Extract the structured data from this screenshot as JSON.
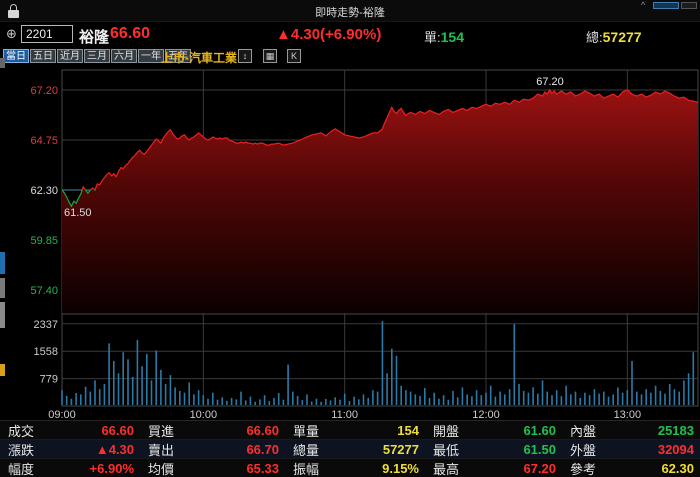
{
  "colors": {
    "up": "#ff2d2d",
    "down": "#22c04e",
    "total_yellow": "#f0de3a",
    "reference_line": "#4d86a8",
    "volume_bar": "#2a7aa8",
    "active_tab": "#1d5c9e",
    "market_label": "#e6b41e",
    "area_fill_top": "#9a1212"
  },
  "titlebar": {
    "title": "即時走勢-裕隆"
  },
  "quote": {
    "stock_id": "2201",
    "stock_name": "裕隆",
    "price": "66.60",
    "change": "▲4.30(+6.90%)",
    "lot_label": "單:",
    "lot": "154",
    "total_label": "總:",
    "total": "57277"
  },
  "toolbar": {
    "tabs": [
      {
        "label": "當日",
        "active": true
      },
      {
        "label": "五日",
        "active": false
      },
      {
        "label": "近月",
        "active": false
      },
      {
        "label": "三月",
        "active": false
      },
      {
        "label": "六月",
        "active": false
      },
      {
        "label": "一年",
        "active": false
      },
      {
        "label": "五年",
        "active": false
      }
    ],
    "market_label": "上市-汽車工業",
    "icon_buttons": [
      {
        "name": "expand-vertical-icon",
        "glyph": "↕"
      },
      {
        "name": "overlay-panel-icon",
        "glyph": "▦"
      },
      {
        "name": "kline-icon",
        "glyph": "K"
      }
    ]
  },
  "chart_data": {
    "type": "area",
    "title": "即時走勢-裕隆",
    "legend": "none",
    "grid": true,
    "price_axis": {
      "ticks": [
        {
          "label": "67.20",
          "value": 67.2,
          "color": "#e23b3b"
        },
        {
          "label": "64.75",
          "value": 64.75,
          "color": "#e23b3b"
        },
        {
          "label": "62.30",
          "value": 62.3,
          "color": "#dcdcdc"
        },
        {
          "label": "59.85",
          "value": 59.85,
          "color": "#28b24c"
        },
        {
          "label": "57.40",
          "value": 57.4,
          "color": "#28b24c"
        }
      ],
      "reference_value": 62.3,
      "high_label": "67.20",
      "low_label": "61.50",
      "ylim": [
        56.2,
        68.2
      ]
    },
    "volume_axis": {
      "ticks": [
        {
          "label": "2337",
          "value": 2337
        },
        {
          "label": "1558",
          "value": 1558
        },
        {
          "label": "779",
          "value": 779
        }
      ],
      "ylim": [
        0,
        3116
      ]
    },
    "x_axis": {
      "ticks": [
        {
          "label": "09:00",
          "minute": 0
        },
        {
          "label": "10:00",
          "minute": 60
        },
        {
          "label": "11:00",
          "minute": 120
        },
        {
          "label": "12:00",
          "minute": 180
        },
        {
          "label": "13:00",
          "minute": 240
        }
      ],
      "range_minutes": [
        0,
        270
      ]
    },
    "price_series": [
      [
        0,
        62.3
      ],
      [
        1,
        62.15
      ],
      [
        2,
        61.95
      ],
      [
        3,
        61.7
      ],
      [
        4,
        61.5
      ],
      [
        5,
        61.75
      ],
      [
        6,
        61.65
      ],
      [
        7,
        61.9
      ],
      [
        8,
        62.1
      ],
      [
        9,
        62.45
      ],
      [
        10,
        62.3
      ],
      [
        11,
        62.15
      ],
      [
        12,
        62.3
      ],
      [
        13,
        62.4
      ],
      [
        14,
        62.3
      ],
      [
        15,
        62.6
      ],
      [
        16,
        62.55
      ],
      [
        17,
        62.75
      ],
      [
        18,
        62.9
      ],
      [
        19,
        63.05
      ],
      [
        20,
        63.15
      ],
      [
        21,
        63.0
      ],
      [
        22,
        63.1
      ],
      [
        23,
        62.95
      ],
      [
        24,
        63.2
      ],
      [
        25,
        63.4
      ],
      [
        26,
        63.35
      ],
      [
        27,
        63.5
      ],
      [
        28,
        63.6
      ],
      [
        29,
        63.75
      ],
      [
        30,
        63.9
      ],
      [
        31,
        64.0
      ],
      [
        32,
        64.15
      ],
      [
        33,
        64.25
      ],
      [
        34,
        64.1
      ],
      [
        35,
        64.05
      ],
      [
        36,
        64.2
      ],
      [
        37,
        64.35
      ],
      [
        38,
        64.5
      ],
      [
        39,
        64.65
      ],
      [
        40,
        64.8
      ],
      [
        41,
        64.7
      ],
      [
        42,
        64.6
      ],
      [
        43,
        64.85
      ],
      [
        44,
        65.0
      ],
      [
        45,
        65.15
      ],
      [
        46,
        65.25
      ],
      [
        47,
        65.05
      ],
      [
        48,
        64.9
      ],
      [
        49,
        64.8
      ],
      [
        50,
        64.85
      ],
      [
        51,
        64.95
      ],
      [
        52,
        65.0
      ],
      [
        53,
        64.85
      ],
      [
        54,
        64.75
      ],
      [
        55,
        64.85
      ],
      [
        56,
        64.9
      ],
      [
        57,
        65.0
      ],
      [
        58,
        65.1
      ],
      [
        59,
        65.0
      ],
      [
        60,
        64.9
      ],
      [
        61,
        64.8
      ],
      [
        62,
        64.75
      ],
      [
        63,
        64.8
      ],
      [
        64,
        64.9
      ],
      [
        65,
        64.85
      ],
      [
        66,
        64.8
      ],
      [
        67,
        64.85
      ],
      [
        68,
        64.8
      ],
      [
        69,
        64.85
      ],
      [
        70,
        64.85
      ],
      [
        71,
        64.75
      ],
      [
        72,
        64.7
      ],
      [
        73,
        64.65
      ],
      [
        74,
        64.6
      ],
      [
        75,
        64.6
      ],
      [
        76,
        64.65
      ],
      [
        77,
        64.6
      ],
      [
        78,
        64.65
      ],
      [
        79,
        64.6
      ],
      [
        80,
        64.6
      ],
      [
        81,
        64.55
      ],
      [
        82,
        64.6
      ],
      [
        83,
        64.55
      ],
      [
        84,
        64.6
      ],
      [
        85,
        64.6
      ],
      [
        86,
        64.55
      ],
      [
        87,
        64.5
      ],
      [
        88,
        64.5
      ],
      [
        89,
        64.55
      ],
      [
        90,
        64.55
      ],
      [
        92,
        64.6
      ],
      [
        94,
        64.5
      ],
      [
        96,
        64.55
      ],
      [
        98,
        64.6
      ],
      [
        100,
        64.7
      ],
      [
        102,
        64.8
      ],
      [
        104,
        64.9
      ],
      [
        106,
        65.0
      ],
      [
        108,
        65.05
      ],
      [
        110,
        65.1
      ],
      [
        112,
        64.95
      ],
      [
        114,
        65.15
      ],
      [
        116,
        65.3
      ],
      [
        118,
        65.15
      ],
      [
        120,
        65.0
      ],
      [
        122,
        64.95
      ],
      [
        124,
        64.9
      ],
      [
        126,
        64.85
      ],
      [
        128,
        64.9
      ],
      [
        130,
        65.0
      ],
      [
        132,
        65.1
      ],
      [
        134,
        65.1
      ],
      [
        136,
        65.3
      ],
      [
        137,
        65.6
      ],
      [
        138,
        65.85
      ],
      [
        139,
        66.1
      ],
      [
        140,
        66.35
      ],
      [
        141,
        66.15
      ],
      [
        142,
        66.05
      ],
      [
        143,
        66.2
      ],
      [
        144,
        66.3
      ],
      [
        145,
        66.1
      ],
      [
        146,
        65.95
      ],
      [
        147,
        66.05
      ],
      [
        148,
        66.1
      ],
      [
        150,
        66.0
      ],
      [
        152,
        66.15
      ],
      [
        154,
        66.05
      ],
      [
        156,
        66.2
      ],
      [
        158,
        66.1
      ],
      [
        160,
        66.0
      ],
      [
        162,
        66.15
      ],
      [
        164,
        66.25
      ],
      [
        166,
        66.1
      ],
      [
        168,
        66.2
      ],
      [
        170,
        66.3
      ],
      [
        172,
        66.2
      ],
      [
        174,
        66.35
      ],
      [
        176,
        66.3
      ],
      [
        178,
        66.4
      ],
      [
        180,
        66.5
      ],
      [
        182,
        66.4
      ],
      [
        184,
        66.55
      ],
      [
        186,
        66.5
      ],
      [
        188,
        66.6
      ],
      [
        190,
        66.5
      ],
      [
        192,
        66.7
      ],
      [
        194,
        66.6
      ],
      [
        196,
        66.75
      ],
      [
        198,
        66.7
      ],
      [
        200,
        66.8
      ],
      [
        202,
        67.0
      ],
      [
        204,
        66.9
      ],
      [
        205,
        67.1
      ],
      [
        206,
        67.0
      ],
      [
        207,
        67.2
      ],
      [
        208,
        67.05
      ],
      [
        209,
        67.15
      ],
      [
        210,
        67.0
      ],
      [
        212,
        67.15
      ],
      [
        214,
        67.0
      ],
      [
        216,
        67.1
      ],
      [
        218,
        66.9
      ],
      [
        220,
        67.0
      ],
      [
        222,
        67.15
      ],
      [
        224,
        67.05
      ],
      [
        226,
        66.9
      ],
      [
        228,
        67.0
      ],
      [
        230,
        66.8
      ],
      [
        232,
        66.9
      ],
      [
        234,
        67.0
      ],
      [
        236,
        66.85
      ],
      [
        238,
        67.1
      ],
      [
        240,
        67.2
      ],
      [
        242,
        67.0
      ],
      [
        244,
        66.9
      ],
      [
        246,
        67.0
      ],
      [
        248,
        66.85
      ],
      [
        250,
        66.95
      ],
      [
        252,
        67.1
      ],
      [
        254,
        67.0
      ],
      [
        256,
        67.15
      ],
      [
        258,
        67.05
      ],
      [
        260,
        66.9
      ],
      [
        262,
        66.8
      ],
      [
        264,
        66.85
      ],
      [
        266,
        66.7
      ],
      [
        268,
        66.65
      ],
      [
        270,
        66.6
      ]
    ],
    "volume_bin_minutes": 2,
    "volume_values": [
      420,
      260,
      180,
      340,
      300,
      520,
      380,
      700,
      450,
      600,
      1750,
      1250,
      900,
      1500,
      1300,
      800,
      1850,
      1100,
      1450,
      700,
      1550,
      1000,
      600,
      850,
      500,
      400,
      350,
      640,
      300,
      420,
      280,
      180,
      350,
      150,
      220,
      120,
      200,
      160,
      380,
      130,
      240,
      90,
      160,
      280,
      110,
      200,
      340,
      150,
      1150,
      380,
      260,
      140,
      300,
      100,
      180,
      90,
      170,
      130,
      220,
      150,
      320,
      110,
      240,
      160,
      300,
      200,
      420,
      380,
      2400,
      900,
      1600,
      1400,
      550,
      420,
      380,
      300,
      260,
      480,
      200,
      350,
      180,
      280,
      150,
      400,
      220,
      500,
      300,
      250,
      420,
      280,
      350,
      550,
      240,
      380,
      300,
      450,
      2300,
      600,
      400,
      350,
      500,
      320,
      700,
      380,
      280,
      420,
      250,
      550,
      300,
      380,
      200,
      350,
      280,
      450,
      320,
      380,
      240,
      300,
      500,
      350,
      420,
      1250,
      380,
      300,
      450,
      350,
      550,
      400,
      320,
      600,
      450,
      380,
      700,
      900,
      1500
    ]
  },
  "info_panel": {
    "rows": [
      [
        {
          "label": "成交",
          "value": "66.60",
          "color": "up"
        },
        {
          "label": "買進",
          "value": "66.60",
          "color": "up"
        },
        {
          "label": "單量",
          "value": "154",
          "color": "yellow"
        },
        {
          "label": "開盤",
          "value": "61.60",
          "color": "down"
        },
        {
          "label": "內盤",
          "value": "25183",
          "color": "down"
        }
      ],
      [
        {
          "label": "漲跌",
          "value": "▲4.30",
          "color": "up"
        },
        {
          "label": "賣出",
          "value": "66.70",
          "color": "up"
        },
        {
          "label": "總量",
          "value": "57277",
          "color": "yellow"
        },
        {
          "label": "最低",
          "value": "61.50",
          "color": "down"
        },
        {
          "label": "外盤",
          "value": "32094",
          "color": "up"
        }
      ],
      [
        {
          "label": "幅度",
          "value": "+6.90%",
          "color": "up"
        },
        {
          "label": "均價",
          "value": "65.33",
          "color": "up"
        },
        {
          "label": "振幅",
          "value": "9.15%",
          "color": "yellow"
        },
        {
          "label": "最高",
          "value": "67.20",
          "color": "up"
        },
        {
          "label": "參考",
          "value": "62.30",
          "color": "yellow"
        }
      ]
    ]
  }
}
